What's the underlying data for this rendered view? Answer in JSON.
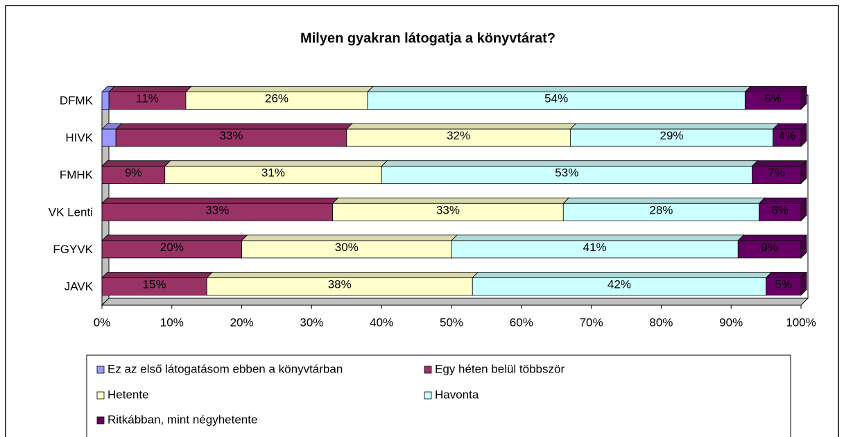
{
  "chart_data": {
    "type": "bar",
    "orientation": "horizontal",
    "stacked": true,
    "title": "Milyen gyakran látogatja a könyvtárat?",
    "categories": [
      "DFMK",
      "HIVK",
      "FMHK",
      "VK Lenti",
      "FGYVK",
      "JAVK"
    ],
    "series": [
      {
        "name": "Ez az első látogatásom ebben a könyvtárban",
        "color": "#9999ff",
        "values": [
          1,
          2,
          0,
          0,
          0,
          0
        ]
      },
      {
        "name": "Egy héten belül többször",
        "color": "#993366",
        "values": [
          11,
          33,
          9,
          33,
          20,
          15
        ],
        "value_labels": [
          "11%",
          "33%",
          "9%",
          "33%",
          "20%",
          "15%"
        ]
      },
      {
        "name": "Hetente",
        "color": "#ffffcc",
        "values": [
          26,
          32,
          31,
          33,
          30,
          38
        ],
        "value_labels": [
          "26%",
          "32%",
          "31%",
          "33%",
          "30%",
          "38%"
        ]
      },
      {
        "name": "Havonta",
        "color": "#ccffff",
        "values": [
          54,
          29,
          53,
          28,
          41,
          42
        ],
        "value_labels": [
          "54%",
          "29%",
          "53%",
          "28%",
          "41%",
          "42%"
        ]
      },
      {
        "name": "Ritkábban, mint négyhetente",
        "color": "#660066",
        "values": [
          8,
          4,
          7,
          6,
          9,
          5
        ],
        "value_labels": [
          "8%",
          "4%",
          "7%",
          "6%",
          "9%",
          "5%"
        ]
      }
    ],
    "xlim": [
      0,
      100
    ],
    "xticks": [
      {
        "value": 0,
        "label": "0%"
      },
      {
        "value": 10,
        "label": "10%"
      },
      {
        "value": 20,
        "label": "20%"
      },
      {
        "value": 30,
        "label": "30%"
      },
      {
        "value": 40,
        "label": "40%"
      },
      {
        "value": 50,
        "label": "50%"
      },
      {
        "value": 60,
        "label": "60%"
      },
      {
        "value": 70,
        "label": "70%"
      },
      {
        "value": 80,
        "label": "80%"
      },
      {
        "value": 90,
        "label": "90%"
      },
      {
        "value": 100,
        "label": "100%"
      }
    ],
    "legend": "bottom"
  }
}
